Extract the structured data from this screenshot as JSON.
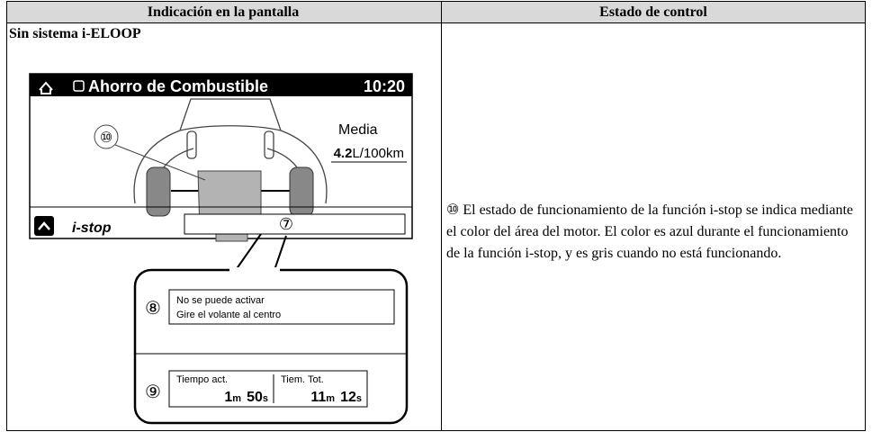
{
  "table": {
    "headers": [
      "Indicación en la pantalla",
      "Estado de control"
    ],
    "rows": [
      {
        "section": "Sin sistema i-ELOOP",
        "display": {
          "title": "Ahorro de Combustible",
          "time": "10:20",
          "average_label": "Media",
          "average_value": "4.2",
          "average_unit": "L/100km",
          "mode": "i-stop",
          "callouts": [
            "⑩",
            "⑦",
            "⑧",
            "⑨"
          ],
          "message": [
            "No se puede activar",
            "Gire el volante al centro"
          ],
          "timers": [
            {
              "label": "Tiempo act.",
              "minutes": "1",
              "minutes_unit": "m",
              "seconds": "50",
              "seconds_unit": "s"
            },
            {
              "label": "Tiem. Tot.",
              "minutes": "11",
              "minutes_unit": "m",
              "seconds": "12",
              "seconds_unit": "s"
            }
          ]
        },
        "description": {
          "marker": "⑩",
          "text": "El estado de funcionamiento de la función i-stop se indica mediante el color del área del motor. El color es azul durante el funcionamiento de la función i-stop, y es gris cuando no está funcionando."
        }
      }
    ]
  }
}
